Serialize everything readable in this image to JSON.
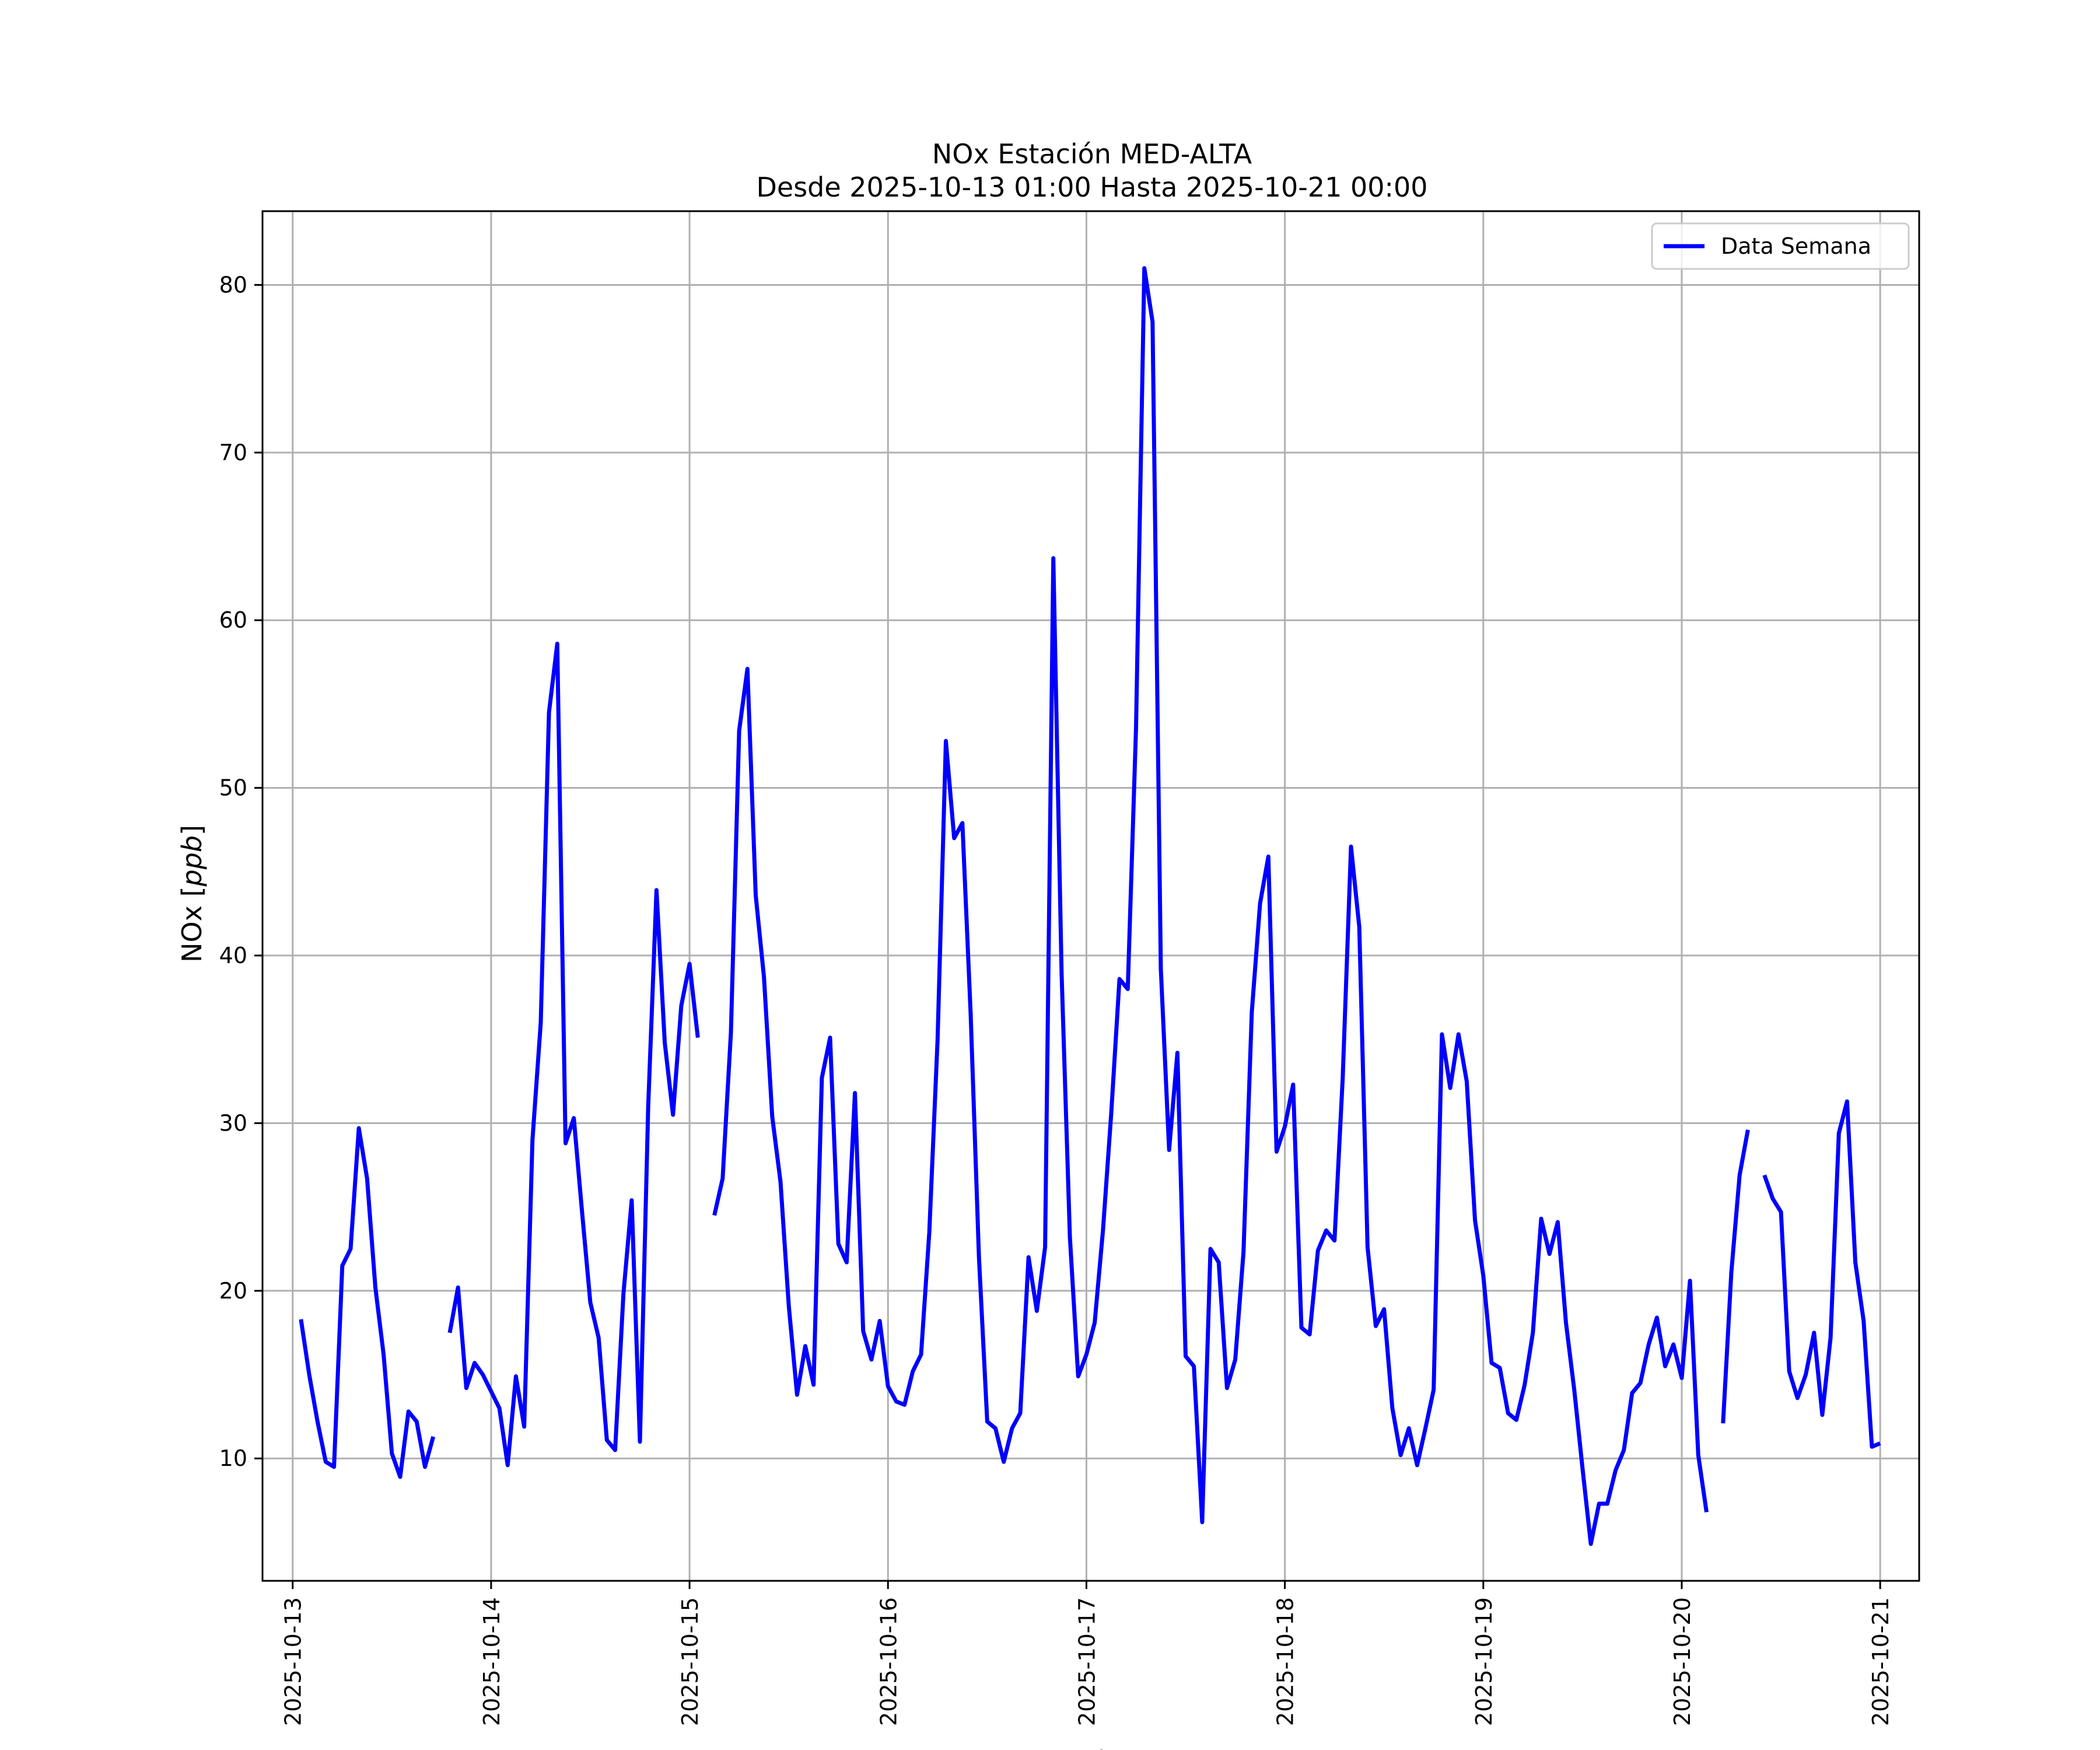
{
  "chart_data": {
    "type": "line",
    "title": "NOx Estación MED-ALTA",
    "subtitle": "Desde 2025-10-13 01:00 Hasta 2025-10-21 00:00",
    "xlabel": "Fecha",
    "ylabel_text": "NOx [",
    "ylabel_unit": "ppb",
    "ylabel_close": "]",
    "xlim": [
      "2025-10-12 20:21",
      "2025-10-21 04:43"
    ],
    "ylim": [
      2.7,
      84.4
    ],
    "x_ticks": [
      "2025-10-13",
      "2025-10-14",
      "2025-10-15",
      "2025-10-16",
      "2025-10-17",
      "2025-10-18",
      "2025-10-19",
      "2025-10-20",
      "2025-10-21"
    ],
    "y_ticks": [
      10,
      20,
      30,
      40,
      50,
      60,
      70,
      80
    ],
    "grid": true,
    "legend_position": "upper right",
    "series": [
      {
        "name": "Data Semana",
        "color": "#0000ff",
        "points": [
          [
            "2025-10-13 01:00",
            18.3
          ],
          [
            "2025-10-13 02:00",
            15.0
          ],
          [
            "2025-10-13 03:00",
            12.2
          ],
          [
            "2025-10-13 04:00",
            9.8
          ],
          [
            "2025-10-13 05:00",
            9.5
          ],
          [
            "2025-10-13 06:00",
            21.5
          ],
          [
            "2025-10-13 07:00",
            22.5
          ],
          [
            "2025-10-13 08:00",
            29.7
          ],
          [
            "2025-10-13 09:00",
            26.7
          ],
          [
            "2025-10-13 10:00",
            20.2
          ],
          [
            "2025-10-13 11:00",
            16.2
          ],
          [
            "2025-10-13 12:00",
            10.3
          ],
          [
            "2025-10-13 13:00",
            8.9
          ],
          [
            "2025-10-13 14:00",
            12.8
          ],
          [
            "2025-10-13 15:00",
            12.2
          ],
          [
            "2025-10-13 16:00",
            9.5
          ],
          [
            "2025-10-13 17:00",
            11.3
          ],
          [
            "2025-10-13 18:00",
            null
          ],
          [
            "2025-10-13 19:00",
            17.5
          ],
          [
            "2025-10-13 20:00",
            20.2
          ],
          [
            "2025-10-13 21:00",
            14.2
          ],
          [
            "2025-10-13 22:00",
            15.7
          ],
          [
            "2025-10-13 23:00",
            15.0
          ],
          [
            "2025-10-14 00:00",
            14.0
          ],
          [
            "2025-10-14 01:00",
            13.0
          ],
          [
            "2025-10-14 02:00",
            9.6
          ],
          [
            "2025-10-14 03:00",
            14.9
          ],
          [
            "2025-10-14 04:00",
            11.9
          ],
          [
            "2025-10-14 05:00",
            29.0
          ],
          [
            "2025-10-14 06:00",
            36.0
          ],
          [
            "2025-10-14 07:00",
            54.5
          ],
          [
            "2025-10-14 08:00",
            58.6
          ],
          [
            "2025-10-14 09:00",
            28.8
          ],
          [
            "2025-10-14 10:00",
            30.3
          ],
          [
            "2025-10-14 11:00",
            24.7
          ],
          [
            "2025-10-14 12:00",
            19.3
          ],
          [
            "2025-10-14 13:00",
            17.2
          ],
          [
            "2025-10-14 14:00",
            11.1
          ],
          [
            "2025-10-14 15:00",
            10.5
          ],
          [
            "2025-10-14 16:00",
            19.8
          ],
          [
            "2025-10-14 17:00",
            25.4
          ],
          [
            "2025-10-14 18:00",
            11.0
          ],
          [
            "2025-10-14 19:00",
            31.0
          ],
          [
            "2025-10-14 20:00",
            43.9
          ],
          [
            "2025-10-14 21:00",
            34.8
          ],
          [
            "2025-10-14 22:00",
            30.5
          ],
          [
            "2025-10-14 23:00",
            37.0
          ],
          [
            "2025-10-15 00:00",
            39.5
          ],
          [
            "2025-10-15 01:00",
            35.1
          ],
          [
            "2025-10-15 02:00",
            null
          ],
          [
            "2025-10-15 03:00",
            24.5
          ],
          [
            "2025-10-15 04:00",
            26.7
          ],
          [
            "2025-10-15 05:00",
            35.4
          ],
          [
            "2025-10-15 06:00",
            53.4
          ],
          [
            "2025-10-15 07:00",
            57.1
          ],
          [
            "2025-10-15 08:00",
            43.6
          ],
          [
            "2025-10-15 09:00",
            38.7
          ],
          [
            "2025-10-15 10:00",
            30.4
          ],
          [
            "2025-10-15 11:00",
            26.5
          ],
          [
            "2025-10-15 12:00",
            19.1
          ],
          [
            "2025-10-15 13:00",
            13.8
          ],
          [
            "2025-10-15 14:00",
            16.7
          ],
          [
            "2025-10-15 15:00",
            14.4
          ],
          [
            "2025-10-15 16:00",
            32.7
          ],
          [
            "2025-10-15 17:00",
            35.1
          ],
          [
            "2025-10-15 18:00",
            22.8
          ],
          [
            "2025-10-15 19:00",
            21.7
          ],
          [
            "2025-10-15 20:00",
            31.8
          ],
          [
            "2025-10-15 21:00",
            17.6
          ],
          [
            "2025-10-15 22:00",
            15.9
          ],
          [
            "2025-10-15 23:00",
            18.2
          ],
          [
            "2025-10-16 00:00",
            14.3
          ],
          [
            "2025-10-16 01:00",
            13.4
          ],
          [
            "2025-10-16 02:00",
            13.2
          ],
          [
            "2025-10-16 03:00",
            15.2
          ],
          [
            "2025-10-16 04:00",
            16.2
          ],
          [
            "2025-10-16 05:00",
            23.5
          ],
          [
            "2025-10-16 06:00",
            35.0
          ],
          [
            "2025-10-16 07:00",
            52.8
          ],
          [
            "2025-10-16 08:00",
            47.0
          ],
          [
            "2025-10-16 09:00",
            47.9
          ],
          [
            "2025-10-16 10:00",
            36.5
          ],
          [
            "2025-10-16 11:00",
            22.0
          ],
          [
            "2025-10-16 12:00",
            12.2
          ],
          [
            "2025-10-16 13:00",
            11.8
          ],
          [
            "2025-10-16 14:00",
            9.8
          ],
          [
            "2025-10-16 15:00",
            11.8
          ],
          [
            "2025-10-16 16:00",
            12.7
          ],
          [
            "2025-10-16 17:00",
            22.0
          ],
          [
            "2025-10-16 18:00",
            18.8
          ],
          [
            "2025-10-16 19:00",
            22.6
          ],
          [
            "2025-10-16 20:00",
            63.7
          ],
          [
            "2025-10-16 21:00",
            38.9
          ],
          [
            "2025-10-16 22:00",
            23.2
          ],
          [
            "2025-10-16 23:00",
            14.9
          ],
          [
            "2025-10-17 00:00",
            16.2
          ],
          [
            "2025-10-17 01:00",
            18.1
          ],
          [
            "2025-10-17 02:00",
            23.6
          ],
          [
            "2025-10-17 03:00",
            30.6
          ],
          [
            "2025-10-17 04:00",
            38.6
          ],
          [
            "2025-10-17 05:00",
            38.0
          ],
          [
            "2025-10-17 06:00",
            53.6
          ],
          [
            "2025-10-17 07:00",
            81.0
          ],
          [
            "2025-10-17 08:00",
            77.8
          ],
          [
            "2025-10-17 09:00",
            39.2
          ],
          [
            "2025-10-17 10:00",
            28.4
          ],
          [
            "2025-10-17 11:00",
            34.2
          ],
          [
            "2025-10-17 12:00",
            16.1
          ],
          [
            "2025-10-17 13:00",
            15.5
          ],
          [
            "2025-10-17 14:00",
            6.2
          ],
          [
            "2025-10-17 15:00",
            22.5
          ],
          [
            "2025-10-17 16:00",
            21.7
          ],
          [
            "2025-10-17 17:00",
            14.2
          ],
          [
            "2025-10-17 18:00",
            15.9
          ],
          [
            "2025-10-17 19:00",
            22.3
          ],
          [
            "2025-10-17 20:00",
            36.6
          ],
          [
            "2025-10-17 21:00",
            43.1
          ],
          [
            "2025-10-17 22:00",
            45.9
          ],
          [
            "2025-10-17 23:00",
            28.3
          ],
          [
            "2025-10-18 00:00",
            29.8
          ],
          [
            "2025-10-18 01:00",
            32.3
          ],
          [
            "2025-10-18 02:00",
            17.8
          ],
          [
            "2025-10-18 03:00",
            17.4
          ],
          [
            "2025-10-18 04:00",
            22.4
          ],
          [
            "2025-10-18 05:00",
            23.6
          ],
          [
            "2025-10-18 06:00",
            23.0
          ],
          [
            "2025-10-18 07:00",
            32.7
          ],
          [
            "2025-10-18 08:00",
            46.5
          ],
          [
            "2025-10-18 09:00",
            41.7
          ],
          [
            "2025-10-18 10:00",
            22.6
          ],
          [
            "2025-10-18 11:00",
            17.9
          ],
          [
            "2025-10-18 12:00",
            18.9
          ],
          [
            "2025-10-18 13:00",
            13.0
          ],
          [
            "2025-10-18 14:00",
            10.2
          ],
          [
            "2025-10-18 15:00",
            11.8
          ],
          [
            "2025-10-18 16:00",
            9.6
          ],
          [
            "2025-10-18 17:00",
            11.8
          ],
          [
            "2025-10-18 18:00",
            14.1
          ],
          [
            "2025-10-18 19:00",
            35.3
          ],
          [
            "2025-10-18 20:00",
            32.1
          ],
          [
            "2025-10-18 21:00",
            35.3
          ],
          [
            "2025-10-18 22:00",
            32.5
          ],
          [
            "2025-10-18 23:00",
            24.2
          ],
          [
            "2025-10-19 00:00",
            20.9
          ],
          [
            "2025-10-19 01:00",
            15.7
          ],
          [
            "2025-10-19 02:00",
            15.4
          ],
          [
            "2025-10-19 03:00",
            12.7
          ],
          [
            "2025-10-19 04:00",
            12.3
          ],
          [
            "2025-10-19 05:00",
            14.4
          ],
          [
            "2025-10-19 06:00",
            17.5
          ],
          [
            "2025-10-19 07:00",
            24.3
          ],
          [
            "2025-10-19 08:00",
            22.2
          ],
          [
            "2025-10-19 09:00",
            24.1
          ],
          [
            "2025-10-19 10:00",
            18.1
          ],
          [
            "2025-10-19 11:00",
            14.1
          ],
          [
            "2025-10-19 12:00",
            9.4
          ],
          [
            "2025-10-19 13:00",
            4.9
          ],
          [
            "2025-10-19 14:00",
            7.3
          ],
          [
            "2025-10-19 15:00",
            7.3
          ],
          [
            "2025-10-19 16:00",
            9.3
          ],
          [
            "2025-10-19 17:00",
            10.5
          ],
          [
            "2025-10-19 18:00",
            13.9
          ],
          [
            "2025-10-19 19:00",
            14.5
          ],
          [
            "2025-10-19 20:00",
            16.8
          ],
          [
            "2025-10-19 21:00",
            18.4
          ],
          [
            "2025-10-19 22:00",
            15.5
          ],
          [
            "2025-10-19 23:00",
            16.8
          ],
          [
            "2025-10-20 00:00",
            14.8
          ],
          [
            "2025-10-20 01:00",
            20.6
          ],
          [
            "2025-10-20 02:00",
            10.2
          ],
          [
            "2025-10-20 03:00",
            6.8
          ],
          [
            "2025-10-20 04:00",
            null
          ],
          [
            "2025-10-20 05:00",
            12.1
          ],
          [
            "2025-10-20 06:00",
            21.1
          ],
          [
            "2025-10-20 07:00",
            26.9
          ],
          [
            "2025-10-20 08:00",
            29.6
          ],
          [
            "2025-10-20 09:00",
            null
          ],
          [
            "2025-10-20 10:00",
            26.9
          ],
          [
            "2025-10-20 11:00",
            25.5
          ],
          [
            "2025-10-20 12:00",
            24.7
          ],
          [
            "2025-10-20 13:00",
            15.2
          ],
          [
            "2025-10-20 14:00",
            13.6
          ],
          [
            "2025-10-20 15:00",
            15.0
          ],
          [
            "2025-10-20 16:00",
            17.5
          ],
          [
            "2025-10-20 17:00",
            12.6
          ],
          [
            "2025-10-20 18:00",
            17.2
          ],
          [
            "2025-10-20 19:00",
            29.4
          ],
          [
            "2025-10-20 20:00",
            31.3
          ],
          [
            "2025-10-20 21:00",
            21.7
          ],
          [
            "2025-10-20 22:00",
            18.2
          ],
          [
            "2025-10-20 23:00",
            10.7
          ],
          [
            "2025-10-21 00:00",
            10.9
          ]
        ]
      }
    ]
  }
}
